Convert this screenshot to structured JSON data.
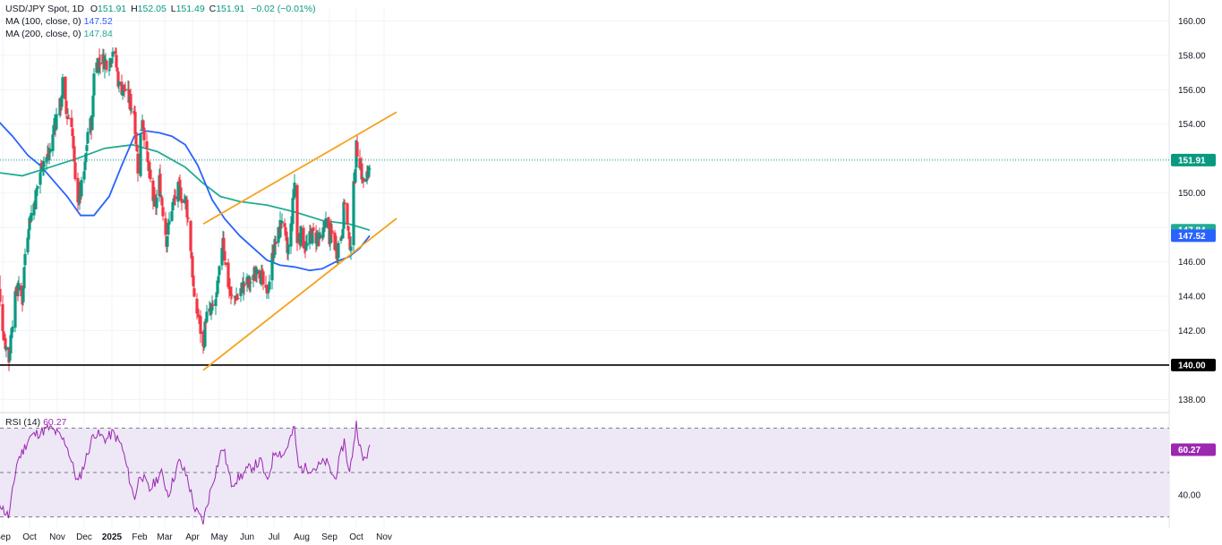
{
  "legend": {
    "symbol": "USD/JPY Spot, 1D",
    "o_key": "O",
    "o": "151.91",
    "h_key": "H",
    "h": "152.05",
    "l_key": "L",
    "l": "151.49",
    "c_key": "C",
    "c": "151.91",
    "change": "−0.02 (−0.01%)",
    "ma100_label": "MA (100, close, 0)",
    "ma100_value": "147.52",
    "ma200_label": "MA (200, close, 0)",
    "ma200_value": "147.84",
    "rsi_label": "RSI (14)",
    "rsi_value": "60.27"
  },
  "colors": {
    "up": "#089981",
    "down": "#f23645",
    "ma100": "#2962ff",
    "ma200": "#22ab94",
    "channel": "#f7a21b",
    "rsi": "#9c27b0",
    "rsi_band": "#ede7f6",
    "support": "#000000",
    "last_price": "#089981"
  },
  "chart_data": {
    "type": "candlestick",
    "x_labels": [
      "Sep",
      "Oct",
      "Nov",
      "Dec",
      "2025",
      "Feb",
      "Mar",
      "Apr",
      "May",
      "Jun",
      "Jul",
      "Aug",
      "Sep",
      "Oct",
      "Nov"
    ],
    "y_ticks": [
      "160.00",
      "158.00",
      "156.00",
      "154.00",
      "152.00",
      "150.00",
      "148.00",
      "146.00",
      "144.00",
      "142.00",
      "140.00",
      "138.00"
    ],
    "ylim": [
      137.5,
      160.8
    ],
    "rsi_ticks": [
      "40.00"
    ],
    "rsi_ylim": [
      25,
      75
    ],
    "rsi_bands": [
      30,
      50,
      70
    ],
    "price_tags": [
      {
        "label": "151.91",
        "value": 151.91,
        "color": "#089981"
      },
      {
        "label": "147.84",
        "value": 147.84,
        "color": "#22ab94"
      },
      {
        "label": "147.52",
        "value": 147.52,
        "color": "#2962ff"
      },
      {
        "label": "140.00",
        "value": 140.0,
        "color": "#000000"
      }
    ],
    "rsi_tag": {
      "label": "60.27",
      "value": 60.27
    },
    "support_level": 140.0,
    "channel_upper": [
      [
        "2025-04-21",
        148.2
      ],
      [
        "2025-10-24",
        153.8
      ]
    ],
    "channel_lower": [
      [
        "2025-04-21",
        139.7
      ],
      [
        "2025-10-24",
        147.3
      ]
    ],
    "price_path": [
      [
        "2024-09-02",
        147.0
      ],
      [
        "2024-09-06",
        143.5
      ],
      [
        "2024-09-11",
        141.5
      ],
      [
        "2024-09-16",
        140.3
      ],
      [
        "2024-09-19",
        142.3
      ],
      [
        "2024-09-25",
        144.6
      ],
      [
        "2024-10-01",
        143.8
      ],
      [
        "2024-10-04",
        146.5
      ],
      [
        "2024-10-08",
        148.2
      ],
      [
        "2024-10-15",
        149.6
      ],
      [
        "2024-10-23",
        151.8
      ],
      [
        "2024-10-31",
        152.2
      ],
      [
        "2024-11-06",
        154.1
      ],
      [
        "2024-11-13",
        155.2
      ],
      [
        "2024-11-15",
        156.4
      ],
      [
        "2024-11-19",
        154.6
      ],
      [
        "2024-11-25",
        154.2
      ],
      [
        "2024-11-29",
        150.5
      ],
      [
        "2024-12-03",
        149.6
      ],
      [
        "2024-12-05",
        150.0
      ],
      [
        "2024-12-10",
        151.5
      ],
      [
        "2024-12-13",
        153.6
      ],
      [
        "2024-12-18",
        154.2
      ],
      [
        "2024-12-20",
        157.2
      ],
      [
        "2024-12-26",
        157.8
      ],
      [
        "2025-01-06",
        157.6
      ],
      [
        "2025-01-10",
        158.4
      ],
      [
        "2025-01-13",
        157.7
      ],
      [
        "2025-01-17",
        156.2
      ],
      [
        "2025-01-24",
        156.0
      ],
      [
        "2025-01-29",
        155.3
      ],
      [
        "2025-02-03",
        154.7
      ],
      [
        "2025-02-07",
        151.5
      ],
      [
        "2025-02-12",
        154.5
      ],
      [
        "2025-02-18",
        151.6
      ],
      [
        "2025-02-26",
        149.0
      ],
      [
        "2025-03-03",
        150.7
      ],
      [
        "2025-03-11",
        147.3
      ],
      [
        "2025-03-17",
        149.2
      ],
      [
        "2025-03-25",
        150.3
      ],
      [
        "2025-03-28",
        149.8
      ],
      [
        "2025-04-02",
        149.5
      ],
      [
        "2025-04-08",
        146.3
      ],
      [
        "2025-04-11",
        143.5
      ],
      [
        "2025-04-16",
        142.8
      ],
      [
        "2025-04-21",
        140.9
      ],
      [
        "2025-04-24",
        142.8
      ],
      [
        "2025-04-30",
        143.0
      ],
      [
        "2025-05-06",
        144.0
      ],
      [
        "2025-05-09",
        145.3
      ],
      [
        "2025-05-13",
        147.6
      ],
      [
        "2025-05-16",
        145.7
      ],
      [
        "2025-05-22",
        143.8
      ],
      [
        "2025-05-27",
        144.0
      ],
      [
        "2025-05-30",
        143.9
      ],
      [
        "2025-06-04",
        144.6
      ],
      [
        "2025-06-11",
        144.8
      ],
      [
        "2025-06-16",
        144.9
      ],
      [
        "2025-06-20",
        145.9
      ],
      [
        "2025-06-24",
        145.3
      ],
      [
        "2025-06-30",
        144.0
      ],
      [
        "2025-07-03",
        144.6
      ],
      [
        "2025-07-08",
        146.6
      ],
      [
        "2025-07-14",
        147.6
      ],
      [
        "2025-07-18",
        148.6
      ],
      [
        "2025-07-24",
        146.5
      ],
      [
        "2025-07-28",
        148.0
      ],
      [
        "2025-08-01",
        150.6
      ],
      [
        "2025-08-04",
        147.1
      ],
      [
        "2025-08-08",
        147.6
      ],
      [
        "2025-08-14",
        146.8
      ],
      [
        "2025-08-20",
        147.6
      ],
      [
        "2025-08-26",
        147.4
      ],
      [
        "2025-09-01",
        147.1
      ],
      [
        "2025-09-04",
        148.5
      ],
      [
        "2025-09-09",
        147.4
      ],
      [
        "2025-09-12",
        147.6
      ],
      [
        "2025-09-17",
        146.6
      ],
      [
        "2025-09-23",
        147.8
      ],
      [
        "2025-09-26",
        149.6
      ],
      [
        "2025-10-01",
        147.1
      ],
      [
        "2025-10-03",
        147.2
      ],
      [
        "2025-10-06",
        150.2
      ],
      [
        "2025-10-09",
        152.6
      ],
      [
        "2025-10-13",
        151.9
      ],
      [
        "2025-10-16",
        150.7
      ],
      [
        "2025-10-20",
        150.6
      ],
      [
        "2025-10-24",
        151.9
      ]
    ],
    "ma100": [
      [
        "2024-09-02",
        154.3
      ],
      [
        "2024-09-20",
        153.3
      ],
      [
        "2024-10-07",
        152.2
      ],
      [
        "2024-10-21",
        151.6
      ],
      [
        "2024-11-05",
        150.7
      ],
      [
        "2024-11-20",
        149.8
      ],
      [
        "2024-12-05",
        148.7
      ],
      [
        "2024-12-20",
        148.7
      ],
      [
        "2025-01-06",
        149.8
      ],
      [
        "2025-01-20",
        151.6
      ],
      [
        "2025-02-03",
        153.3
      ],
      [
        "2025-02-17",
        153.6
      ],
      [
        "2025-03-03",
        153.5
      ],
      [
        "2025-03-17",
        153.3
      ],
      [
        "2025-04-01",
        152.8
      ],
      [
        "2025-04-15",
        151.6
      ],
      [
        "2025-05-01",
        149.6
      ],
      [
        "2025-05-15",
        148.5
      ],
      [
        "2025-06-01",
        147.5
      ],
      [
        "2025-06-16",
        146.8
      ],
      [
        "2025-07-01",
        146.1
      ],
      [
        "2025-07-16",
        145.8
      ],
      [
        "2025-08-01",
        145.7
      ],
      [
        "2025-08-18",
        145.5
      ],
      [
        "2025-09-01",
        145.6
      ],
      [
        "2025-09-16",
        146.0
      ],
      [
        "2025-10-01",
        146.3
      ],
      [
        "2025-10-13",
        146.8
      ],
      [
        "2025-10-24",
        147.52
      ]
    ],
    "ma200": [
      [
        "2024-09-02",
        151.2
      ],
      [
        "2024-10-01",
        151.0
      ],
      [
        "2024-11-01",
        151.5
      ],
      [
        "2024-12-01",
        152.0
      ],
      [
        "2025-01-01",
        152.6
      ],
      [
        "2025-02-01",
        152.8
      ],
      [
        "2025-03-01",
        152.4
      ],
      [
        "2025-04-01",
        151.5
      ],
      [
        "2025-04-20",
        150.6
      ],
      [
        "2025-05-10",
        149.8
      ],
      [
        "2025-06-01",
        149.5
      ],
      [
        "2025-07-01",
        149.3
      ],
      [
        "2025-08-01",
        148.9
      ],
      [
        "2025-09-01",
        148.4
      ],
      [
        "2025-10-01",
        148.2
      ],
      [
        "2025-10-24",
        147.84
      ]
    ],
    "rsi": [
      [
        "2024-09-02",
        40
      ],
      [
        "2024-09-10",
        33
      ],
      [
        "2024-09-16",
        30
      ],
      [
        "2024-09-25",
        55
      ],
      [
        "2024-10-02",
        60
      ],
      [
        "2024-10-09",
        66
      ],
      [
        "2024-10-20",
        68
      ],
      [
        "2024-10-31",
        70
      ],
      [
        "2024-11-08",
        68
      ],
      [
        "2024-11-19",
        63
      ],
      [
        "2024-12-02",
        45
      ],
      [
        "2024-12-10",
        55
      ],
      [
        "2024-12-20",
        68
      ],
      [
        "2025-01-03",
        65
      ],
      [
        "2025-01-10",
        68
      ],
      [
        "2025-01-20",
        62
      ],
      [
        "2025-02-03",
        38
      ],
      [
        "2025-02-10",
        50
      ],
      [
        "2025-02-20",
        42
      ],
      [
        "2025-03-05",
        50
      ],
      [
        "2025-03-13",
        40
      ],
      [
        "2025-03-25",
        55
      ],
      [
        "2025-04-03",
        48
      ],
      [
        "2025-04-12",
        33
      ],
      [
        "2025-04-21",
        28
      ],
      [
        "2025-05-01",
        45
      ],
      [
        "2025-05-13",
        62
      ],
      [
        "2025-05-22",
        45
      ],
      [
        "2025-06-01",
        48
      ],
      [
        "2025-06-12",
        52
      ],
      [
        "2025-06-25",
        55
      ],
      [
        "2025-07-01",
        45
      ],
      [
        "2025-07-10",
        60
      ],
      [
        "2025-07-20",
        58
      ],
      [
        "2025-08-01",
        70
      ],
      [
        "2025-08-05",
        52
      ],
      [
        "2025-08-15",
        52
      ],
      [
        "2025-08-25",
        52
      ],
      [
        "2025-09-05",
        55
      ],
      [
        "2025-09-15",
        47
      ],
      [
        "2025-09-26",
        65
      ],
      [
        "2025-10-01",
        48
      ],
      [
        "2025-10-09",
        72
      ],
      [
        "2025-10-16",
        55
      ],
      [
        "2025-10-24",
        60.27
      ]
    ]
  }
}
